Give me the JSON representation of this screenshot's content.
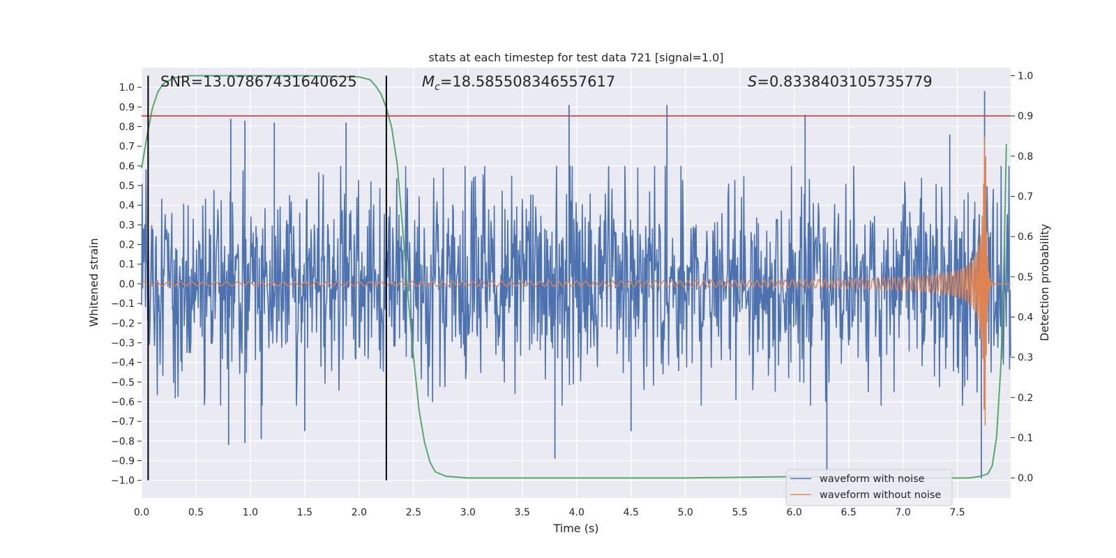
{
  "chart_data": {
    "type": "line",
    "title": "stats at each timestep for test data 721 [signal=1.0]",
    "xlabel": "Time (s)",
    "ylabel": "Whitened strain",
    "y2label": "Detection probability",
    "xlim": [
      0.0,
      7.99
    ],
    "ylim": [
      -1.09,
      1.1
    ],
    "y2lim": [
      -0.05,
      1.02
    ],
    "xticks": [
      "0.0",
      "0.5",
      "1.0",
      "1.5",
      "2.0",
      "2.5",
      "3.0",
      "3.5",
      "4.0",
      "4.5",
      "5.0",
      "5.5",
      "6.0",
      "6.5",
      "7.0",
      "7.5"
    ],
    "yticks": [
      "1.0",
      "0.9",
      "0.8",
      "0.7",
      "0.6",
      "0.5",
      "0.4",
      "0.3",
      "0.2",
      "0.1",
      "0.0",
      "−0.1",
      "−0.2",
      "−0.3",
      "−0.4",
      "−0.5",
      "−0.6",
      "−0.7",
      "−0.8",
      "−0.9",
      "−1.0"
    ],
    "y2ticks": [
      "1.0",
      "0.9",
      "0.8",
      "0.7",
      "0.6",
      "0.5",
      "0.4",
      "0.3",
      "0.2",
      "0.1",
      "0.0"
    ],
    "annotations": {
      "snr": "SNR=13.07867431640625",
      "mc_symbol": "M",
      "mc_sub": "c",
      "mc_value": "=18.585508346557617",
      "s_symbol": "S",
      "s_value": "=0.8338403105735779"
    },
    "threshold": {
      "y2": 0.9,
      "color": "#c44e52"
    },
    "vertical_markers": [
      0.06,
      2.25
    ],
    "noise_peaks": {
      "positive": [
        [
          0.82,
          0.84
        ],
        [
          0.95,
          0.83
        ],
        [
          1.22,
          0.82
        ],
        [
          1.88,
          0.82
        ],
        [
          3.93,
          0.91
        ],
        [
          4.83,
          0.91
        ],
        [
          6.1,
          0.86
        ],
        [
          7.43,
          0.76
        ],
        [
          7.75,
          0.98
        ]
      ],
      "negative": [
        [
          0.8,
          -0.82
        ],
        [
          0.95,
          -0.81
        ],
        [
          1.1,
          -0.79
        ],
        [
          1.5,
          -0.75
        ],
        [
          3.8,
          -0.89
        ],
        [
          4.5,
          -0.75
        ],
        [
          6.3,
          -0.97
        ],
        [
          7.72,
          -0.99
        ]
      ]
    },
    "series": [
      {
        "name": "waveform with noise",
        "axis": "left",
        "color": "#4c72b0",
        "typical_amplitude": 0.33
      },
      {
        "name": "waveform without noise",
        "axis": "left",
        "color": "#dd8452",
        "envelope_peak": 0.75,
        "merger_time": 7.76
      },
      {
        "name": "detection probability",
        "axis": "right",
        "color": "#55a868",
        "x": [
          0.0,
          0.05,
          0.1,
          0.15,
          0.2,
          0.3,
          0.45,
          1.0,
          1.5,
          2.0,
          2.1,
          2.15,
          2.2,
          2.25,
          2.3,
          2.35,
          2.4,
          2.45,
          2.5,
          2.55,
          2.6,
          2.65,
          2.7,
          2.8,
          3.0,
          5.0,
          6.0,
          7.0,
          7.6,
          7.7,
          7.78,
          7.82,
          7.86,
          7.9,
          7.93,
          7.95
        ],
        "y": [
          0.77,
          0.85,
          0.92,
          0.96,
          0.98,
          0.995,
          1.0,
          1.0,
          1.0,
          0.997,
          0.99,
          0.975,
          0.955,
          0.92,
          0.87,
          0.78,
          0.62,
          0.45,
          0.3,
          0.17,
          0.09,
          0.04,
          0.015,
          0.004,
          0.0,
          0.0,
          0.003,
          0.0,
          0.0,
          0.003,
          0.01,
          0.03,
          0.1,
          0.28,
          0.55,
          0.83
        ]
      }
    ],
    "legend": {
      "position": "lower-right",
      "entries": [
        "waveform with noise",
        "waveform without noise"
      ]
    }
  }
}
